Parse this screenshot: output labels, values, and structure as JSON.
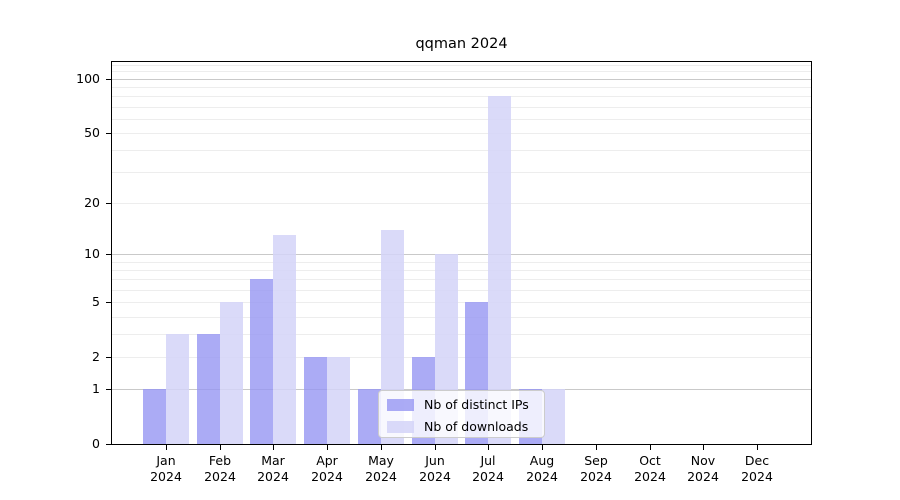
{
  "chart_data": {
    "type": "bar",
    "title": "qqman 2024",
    "categories": [
      "Jan",
      "Feb",
      "Mar",
      "Apr",
      "May",
      "Jun",
      "Jul",
      "Aug",
      "Sep",
      "Oct",
      "Nov",
      "Dec"
    ],
    "x_tick_year": "2024",
    "series": [
      {
        "name": "Nb of distinct IPs",
        "color": "rgba(150,150,243,0.8)",
        "values": [
          1,
          3,
          7,
          2,
          1,
          2,
          5,
          1,
          0,
          0,
          0,
          0
        ]
      },
      {
        "name": "Nb of downloads",
        "color": "rgba(212,212,248,0.85)",
        "values": [
          3,
          5,
          13,
          2,
          14,
          10,
          80,
          1,
          0,
          0,
          0,
          0
        ]
      }
    ],
    "yscale": "log1p",
    "ylim": [
      0,
      124
    ],
    "ytick_labels": [
      100,
      50,
      20,
      10,
      5,
      2,
      1,
      0
    ],
    "grid": {
      "major": [
        1,
        10,
        100
      ],
      "minor": [
        2,
        3,
        4,
        5,
        6,
        7,
        8,
        9,
        20,
        30,
        40,
        50,
        60,
        70,
        80,
        90,
        110,
        120
      ]
    },
    "legend": {
      "entries": [
        "Nb of distinct IPs",
        "Nb of downloads"
      ],
      "position": "bottom-center-right"
    },
    "colors": {
      "distinct_ips": "rgba(150,150,243,0.8)",
      "downloads": "rgba(212,212,248,0.85)",
      "grid_major": "#c9c9c9",
      "grid_minor": "#ededed",
      "spine": "#000000",
      "legend_border": "#cccccc",
      "legend_background": "rgba(255,255,255,0.8)",
      "figure_background": "#ffffff"
    }
  }
}
